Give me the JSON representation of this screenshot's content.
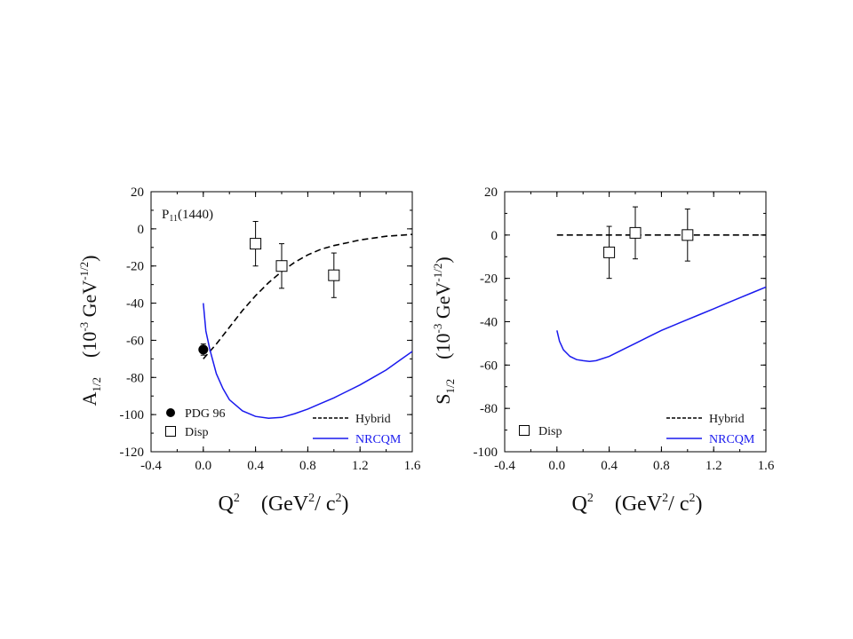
{
  "chart_data": [
    {
      "type": "line",
      "panel": "left",
      "annotation": "P11(1440)",
      "annotation_main": "P",
      "annotation_sub": "11",
      "annotation_rest": "(1440)",
      "ylabel_main": "A",
      "ylabel_sub": "1/2",
      "ylabel_units_pre": "(10",
      "ylabel_units_exp1": "-3",
      "ylabel_units_mid": " GeV",
      "ylabel_units_exp2": "-1/2",
      "ylabel_units_post": ")",
      "xlabel_main": "Q",
      "xlabel_exp": "2",
      "xlabel_units_pre": "(GeV",
      "xlabel_units_exp1": "2",
      "xlabel_units_mid": "/ c",
      "xlabel_units_exp2": "2",
      "xlabel_units_post": ")",
      "xlim": [
        -0.4,
        1.6
      ],
      "ylim": [
        -120,
        20
      ],
      "xticks": [
        "-0.4",
        "0.0",
        "0.4",
        "0.8",
        "1.2",
        "1.6"
      ],
      "yticks": [
        "20",
        "0",
        "-20",
        "-40",
        "-60",
        "-80",
        "-100",
        "-120"
      ],
      "legend_left": [
        {
          "label": "PDG 96",
          "marker": "filled-circle"
        },
        {
          "label": "Disp",
          "marker": "open-square"
        }
      ],
      "legend_right": [
        {
          "label": "Hybrid",
          "style": "dashed",
          "color": "#000000"
        },
        {
          "label": "NRCQM",
          "style": "solid",
          "color": "#1a1aee"
        }
      ],
      "series": [
        {
          "name": "PDG 96",
          "kind": "points",
          "marker": "filled-circle",
          "x": [
            0.0
          ],
          "y": [
            -65
          ],
          "err": [
            3
          ]
        },
        {
          "name": "Disp",
          "kind": "points",
          "marker": "open-square",
          "x": [
            0.4,
            0.6,
            1.0
          ],
          "y": [
            -8,
            -20,
            -25
          ],
          "err": [
            12,
            12,
            12
          ]
        },
        {
          "name": "Hybrid",
          "kind": "line",
          "style": "dashed",
          "color": "#000000",
          "x": [
            0.0,
            0.1,
            0.2,
            0.3,
            0.4,
            0.5,
            0.6,
            0.7,
            0.8,
            0.9,
            1.0,
            1.1,
            1.2,
            1.3,
            1.4,
            1.5,
            1.6
          ],
          "y": [
            -70,
            -62,
            -53,
            -44,
            -36,
            -29,
            -23,
            -18,
            -14,
            -11,
            -9,
            -7.5,
            -6,
            -5,
            -4,
            -3.5,
            -3
          ]
        },
        {
          "name": "NRCQM",
          "kind": "line",
          "style": "solid",
          "color": "#1a1aee",
          "x": [
            0.0,
            0.02,
            0.05,
            0.1,
            0.15,
            0.2,
            0.3,
            0.4,
            0.5,
            0.6,
            0.7,
            0.8,
            0.9,
            1.0,
            1.1,
            1.2,
            1.3,
            1.4,
            1.5,
            1.6
          ],
          "y": [
            -40,
            -55,
            -65,
            -78,
            -86,
            -92,
            -98,
            -101,
            -102,
            -101.5,
            -99.5,
            -97,
            -94,
            -91,
            -87.5,
            -84,
            -80,
            -76,
            -71,
            -66
          ]
        }
      ]
    },
    {
      "type": "line",
      "panel": "right",
      "ylabel_main": "S",
      "ylabel_sub": "1/2",
      "ylabel_units_pre": "(10",
      "ylabel_units_exp1": "-3",
      "ylabel_units_mid": " GeV",
      "ylabel_units_exp2": "-1/2",
      "ylabel_units_post": ")",
      "xlabel_main": "Q",
      "xlabel_exp": "2",
      "xlabel_units_pre": "(GeV",
      "xlabel_units_exp1": "2",
      "xlabel_units_mid": "/ c",
      "xlabel_units_exp2": "2",
      "xlabel_units_post": ")",
      "xlim": [
        -0.4,
        1.6
      ],
      "ylim": [
        -100,
        20
      ],
      "xticks": [
        "-0.4",
        "0.0",
        "0.4",
        "0.8",
        "1.2",
        "1.6"
      ],
      "yticks": [
        "20",
        "0",
        "-20",
        "-40",
        "-60",
        "-80",
        "-100"
      ],
      "legend_left": [
        {
          "label": "Disp",
          "marker": "open-square"
        }
      ],
      "legend_right": [
        {
          "label": "Hybrid",
          "style": "dashed",
          "color": "#000000"
        },
        {
          "label": "NRCQM",
          "style": "solid",
          "color": "#1a1aee"
        }
      ],
      "series": [
        {
          "name": "Disp",
          "kind": "points",
          "marker": "open-square",
          "x": [
            0.4,
            0.6,
            1.0
          ],
          "y": [
            -8,
            1,
            0
          ],
          "err": [
            12,
            12,
            12
          ]
        },
        {
          "name": "Hybrid",
          "kind": "line",
          "style": "dashed",
          "color": "#000000",
          "x": [
            0.0,
            1.6
          ],
          "y": [
            0,
            0
          ]
        },
        {
          "name": "NRCQM",
          "kind": "line",
          "style": "solid",
          "color": "#1a1aee",
          "x": [
            0.0,
            0.02,
            0.05,
            0.1,
            0.15,
            0.2,
            0.25,
            0.3,
            0.4,
            0.5,
            0.6,
            0.7,
            0.8,
            0.9,
            1.0,
            1.1,
            1.2,
            1.3,
            1.4,
            1.5,
            1.6
          ],
          "y": [
            -44,
            -49,
            -53,
            -56,
            -57.5,
            -58,
            -58.3,
            -58,
            -56,
            -53,
            -50,
            -47,
            -44,
            -41.5,
            -39,
            -36.5,
            -34,
            -31.5,
            -29,
            -26.5,
            -24
          ]
        }
      ]
    }
  ]
}
